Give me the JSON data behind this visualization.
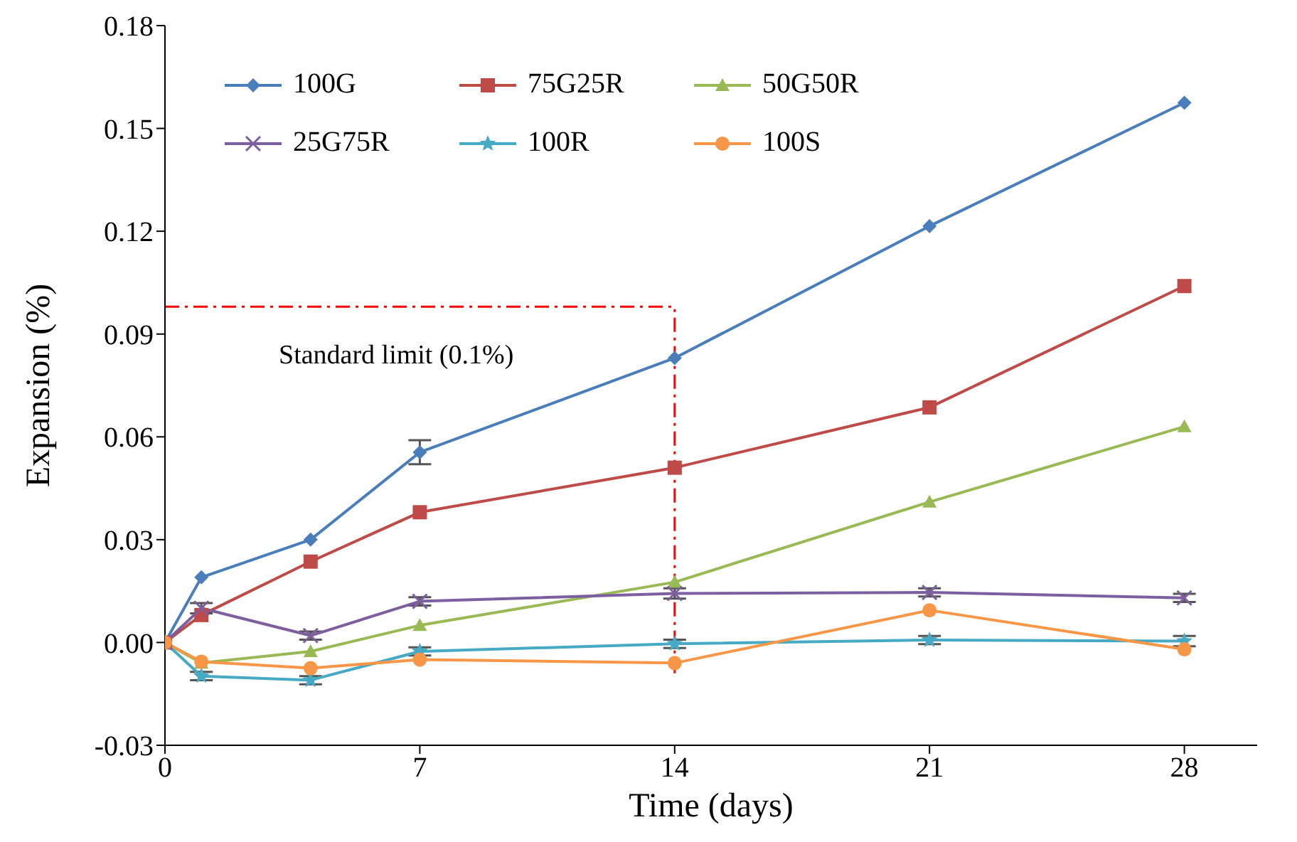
{
  "chart_data": {
    "type": "line",
    "xlabel": "Time (days)",
    "ylabel": "Expansion (%)",
    "x": [
      0,
      1,
      4,
      7,
      14,
      21,
      28
    ],
    "xlim": [
      0,
      30
    ],
    "xticks": [
      0,
      7,
      14,
      21,
      28
    ],
    "ylim": [
      -0.03,
      0.18
    ],
    "yticks": [
      {
        "value": -0.03,
        "label": "-0.03"
      },
      {
        "value": 0,
        "label": "0.00"
      },
      {
        "value": 0.03,
        "label": "0.03"
      },
      {
        "value": 0.06,
        "label": "0.06"
      },
      {
        "value": 0.09,
        "label": "0.09"
      },
      {
        "value": 0.12,
        "label": "0.12"
      },
      {
        "value": 0.15,
        "label": "0.15"
      },
      {
        "value": 0.18,
        "label": "0.18"
      }
    ],
    "grid": false,
    "legend": "top left",
    "line_style": "solid",
    "ref_lines": [
      {
        "axis": "y",
        "value": 0.098,
        "label": "Standard limit (0.1%)",
        "color": "#ff0000",
        "line_style": "dashed"
      },
      {
        "axis": "x",
        "value": 14,
        "color": "#ff0000",
        "line_style": "dashed"
      }
    ],
    "series": [
      {
        "name": "100G",
        "color": "#4a7ebb",
        "marker": "diamond",
        "values": [
          0,
          0.019,
          0.03,
          0.0555,
          0.083,
          0.1215,
          0.1575
        ],
        "errors": [
          null,
          null,
          null,
          0.0035,
          null,
          null,
          null
        ]
      },
      {
        "name": "75G25R",
        "color": "#be4b48",
        "marker": "square",
        "values": [
          0,
          0.008,
          0.0236,
          0.038,
          0.051,
          0.0686,
          0.104
        ]
      },
      {
        "name": "50G50R",
        "color": "#98b954",
        "marker": "triangle",
        "values": [
          0,
          -0.006,
          -0.0026,
          0.005,
          0.0176,
          0.041,
          0.063
        ]
      },
      {
        "name": "25G75R",
        "color": "#7d5fa0",
        "marker": "cross",
        "values": [
          0,
          0.01,
          0.002,
          0.012,
          0.0143,
          0.0146,
          0.013
        ],
        "errors": [
          null,
          0.0015,
          0.0012,
          0.0012,
          0.0015,
          0.0012,
          0.0012
        ]
      },
      {
        "name": "100R",
        "color": "#46aac5",
        "marker": "star",
        "values": [
          0,
          -0.0098,
          -0.011,
          -0.0026,
          -0.0004,
          0.0007,
          0.0004
        ],
        "errors": [
          null,
          0.0012,
          0.0012,
          0.0012,
          0.0012,
          0.0012,
          0.0015
        ]
      },
      {
        "name": "100S",
        "color": "#f79646",
        "marker": "circle",
        "values": [
          0,
          -0.0056,
          -0.0075,
          -0.005,
          -0.006,
          0.0094,
          -0.002
        ]
      }
    ]
  }
}
